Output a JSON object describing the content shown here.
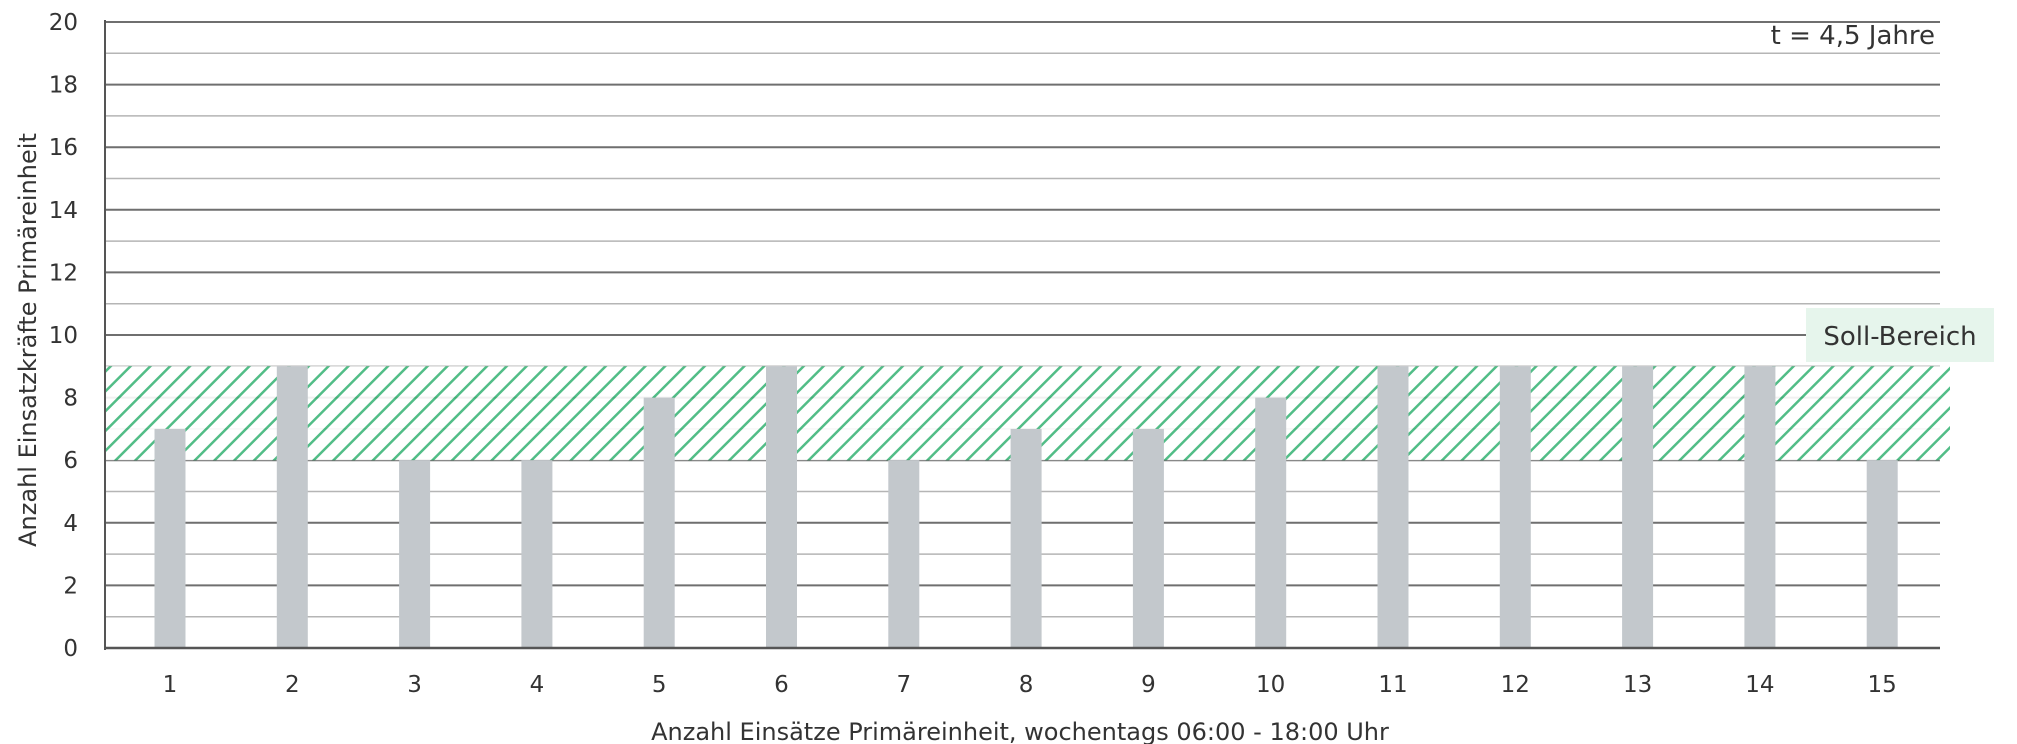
{
  "chart_data": {
    "type": "bar",
    "categories": [
      "1",
      "2",
      "3",
      "4",
      "5",
      "6",
      "7",
      "8",
      "9",
      "10",
      "11",
      "12",
      "13",
      "14",
      "15"
    ],
    "values": [
      7,
      9,
      6,
      6,
      8,
      9,
      6,
      7,
      7,
      8,
      9,
      9,
      9,
      9,
      6
    ],
    "title": "",
    "xlabel": "Anzahl Einsätze Primäreinheit, wochentags 06:00 - 18:00 Uhr",
    "ylabel": "Anzahl Einsatzkräfte Primäreinheit",
    "ylim": [
      0,
      20
    ],
    "yticks": [
      "0",
      "2",
      "4",
      "6",
      "8",
      "10",
      "12",
      "14",
      "16",
      "18",
      "20"
    ],
    "grid": true,
    "target_band": {
      "label": "Soll-Bereich",
      "from": 6,
      "to": 9
    },
    "annotation": "t = 4,5 Jahre",
    "colors": {
      "bar": "#c3c8cc",
      "band": "#3fb67a",
      "grid": "#707070",
      "label_bg": "#e6f5ec"
    }
  }
}
